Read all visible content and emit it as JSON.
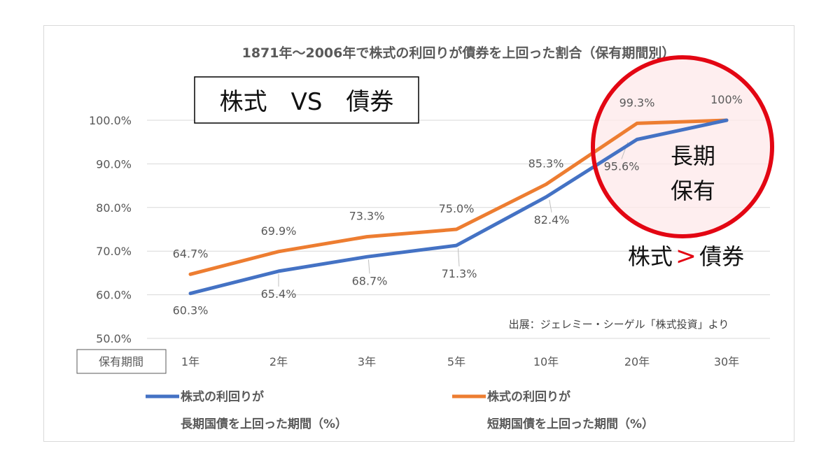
{
  "chart_data": {
    "type": "line",
    "title": "1871年～2006年で株式の利回りが債券を上回った割合（保有期間別）",
    "categories": [
      "1年",
      "2年",
      "3年",
      "5年",
      "10年",
      "20年",
      "30年"
    ],
    "category_header": "保有期間",
    "ylim": [
      50,
      100
    ],
    "yticks": [
      "50.0%",
      "60.0%",
      "70.0%",
      "80.0%",
      "90.0%",
      "100.0%"
    ],
    "ytick_values": [
      50,
      60,
      70,
      80,
      90,
      100
    ],
    "grid": true,
    "legend_position": "bottom",
    "series": [
      {
        "legend_line1": "株式の利回りが",
        "legend_line2": "長期国債を上回った期間（%）",
        "color": "#4472c4",
        "values": [
          60.3,
          65.4,
          68.7,
          71.3,
          82.4,
          95.6,
          100
        ],
        "labels": [
          "60.3%",
          "65.4%",
          "68.7%",
          "71.3%",
          "82.4%",
          "95.6%",
          ""
        ]
      },
      {
        "legend_line1": "株式の利回りが",
        "legend_line2": "短期国債を上回った期間（%）",
        "color": "#ed7d31",
        "values": [
          64.7,
          69.9,
          73.3,
          75.0,
          85.3,
          99.3,
          100
        ],
        "labels": [
          "64.7%",
          "69.9%",
          "73.3%",
          "75.0%",
          "85.3%",
          "99.3%",
          "100%"
        ]
      }
    ]
  },
  "annotations": {
    "headline": "株式　VS　債券",
    "circle_line1": "長期",
    "circle_line2": "保有",
    "conclusion_left": "株式",
    "conclusion_symbol": ">",
    "conclusion_right": "債券",
    "source": "出展：ジェレミー・シーゲル「株式投資」より",
    "circle_color": "#e30613"
  }
}
